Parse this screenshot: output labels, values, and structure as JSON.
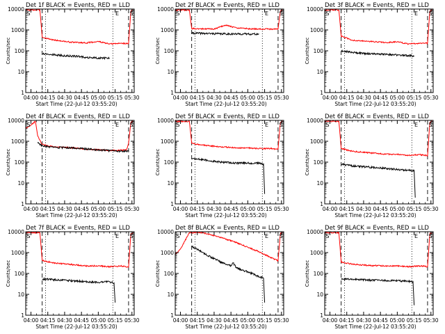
{
  "chart_data": [
    {
      "type": "line",
      "title": "Det 1f BLACK = Events, RED = LLD",
      "xlabel": "Start Time (22-Jul-12 03:55:20)",
      "ylabel": "Counts/sec",
      "x_ticks": [
        "04:00",
        "04:15",
        "04:30",
        "04:45",
        "05:00",
        "05:15",
        "05:30"
      ],
      "y_ticks": [
        "1",
        "10",
        "100",
        "1000",
        "10000"
      ],
      "yscale": "log",
      "ylim": [
        1,
        10000
      ],
      "markers": [
        {
          "text": "S",
          "x": "03:55"
        },
        {
          "text": "E",
          "x": "05:15"
        },
        {
          "text": "S",
          "x": "05:29"
        }
      ],
      "vlines": [
        {
          "x": "04:10",
          "style": "dashed"
        },
        {
          "x": "04:13",
          "style": "dotted"
        },
        {
          "x": "05:13",
          "style": "dotted"
        },
        {
          "x": "05:27",
          "style": "dashed"
        }
      ],
      "series": [
        {
          "color": "#ff0000",
          "x": [
            "03:55",
            "03:58",
            "04:08",
            "04:10",
            "04:20",
            "04:35",
            "04:50",
            "05:00",
            "05:10",
            "05:20",
            "05:27",
            "05:29",
            "05:31"
          ],
          "y": [
            9000,
            9000,
            9000,
            450,
            330,
            260,
            240,
            280,
            210,
            230,
            220,
            8000,
            9000
          ]
        },
        {
          "color": "#000000",
          "x": [
            "04:10",
            "04:20",
            "04:30",
            "04:40",
            "04:50",
            "05:00",
            "05:10"
          ],
          "y": [
            75,
            65,
            58,
            55,
            48,
            45,
            45
          ]
        }
      ]
    },
    {
      "type": "line",
      "title": "Det 2f BLACK = Events, RED = LLD",
      "xlabel": "Start Time (22-Jul-12 03:55:20)",
      "ylabel": "Counts/sec",
      "x_ticks": [
        "04:00",
        "04:15",
        "04:30",
        "04:45",
        "05:00",
        "05:15",
        "05:30"
      ],
      "y_ticks": [
        "1",
        "10",
        "100",
        "1000",
        "10000"
      ],
      "yscale": "log",
      "ylim": [
        1,
        10000
      ],
      "markers": [
        {
          "text": "S",
          "x": "03:55"
        },
        {
          "text": "E",
          "x": "05:15"
        },
        {
          "text": "S",
          "x": "05:29"
        }
      ],
      "vlines": [
        {
          "x": "04:10",
          "style": "dashed"
        },
        {
          "x": "04:13",
          "style": "dotted"
        },
        {
          "x": "05:13",
          "style": "dotted"
        },
        {
          "x": "05:27",
          "style": "dashed"
        }
      ],
      "series": [
        {
          "color": "#ff0000",
          "x": [
            "03:55",
            "04:03",
            "04:08",
            "04:10",
            "04:30",
            "04:40",
            "04:50",
            "05:00",
            "05:10",
            "05:25",
            "05:27",
            "05:29",
            "05:31"
          ],
          "y": [
            9000,
            9000,
            9000,
            1150,
            1100,
            1700,
            1250,
            1150,
            1100,
            1100,
            1100,
            8000,
            9000
          ]
        },
        {
          "color": "#000000",
          "x": [
            "04:10",
            "04:20",
            "04:35",
            "04:50",
            "05:00",
            "05:10"
          ],
          "y": [
            700,
            680,
            650,
            640,
            640,
            630
          ]
        }
      ]
    },
    {
      "type": "line",
      "title": "Det 3f BLACK = Events, RED = LLD",
      "xlabel": "Start Time (22-Jul-12 03:55:20)",
      "ylabel": "Counts/sec",
      "x_ticks": [
        "04:00",
        "04:15",
        "04:30",
        "04:45",
        "05:00",
        "05:15",
        "05:30"
      ],
      "y_ticks": [
        "1",
        "10",
        "100",
        "1000",
        "10000"
      ],
      "yscale": "log",
      "ylim": [
        1,
        10000
      ],
      "markers": [
        {
          "text": "S",
          "x": "03:55"
        },
        {
          "text": "E",
          "x": "05:15"
        },
        {
          "text": "S",
          "x": "05:29"
        }
      ],
      "vlines": [
        {
          "x": "04:10",
          "style": "dashed"
        },
        {
          "x": "04:13",
          "style": "dotted"
        },
        {
          "x": "05:13",
          "style": "dotted"
        },
        {
          "x": "05:27",
          "style": "dashed"
        }
      ],
      "series": [
        {
          "color": "#ff0000",
          "x": [
            "03:55",
            "03:58",
            "04:08",
            "04:10",
            "04:20",
            "04:35",
            "04:50",
            "05:00",
            "05:10",
            "05:20",
            "05:27",
            "05:29",
            "05:31"
          ],
          "y": [
            9000,
            9000,
            9000,
            500,
            320,
            280,
            250,
            270,
            210,
            230,
            230,
            8000,
            9000
          ]
        },
        {
          "color": "#000000",
          "x": [
            "04:10",
            "04:20",
            "04:30",
            "04:40",
            "04:50",
            "05:00",
            "05:15"
          ],
          "y": [
            100,
            85,
            75,
            70,
            68,
            62,
            58
          ]
        }
      ]
    },
    {
      "type": "line",
      "title": "Det 4f BLACK = Events, RED = LLD",
      "xlabel": "Start Time (22-Jul-12 03:55:20)",
      "ylabel": "Counts/sec",
      "x_ticks": [
        "04:00",
        "04:15",
        "04:30",
        "04:45",
        "05:00",
        "05:15",
        "05:30"
      ],
      "y_ticks": [
        "1",
        "10",
        "100",
        "1000",
        "10000"
      ],
      "yscale": "log",
      "ylim": [
        1,
        10000
      ],
      "markers": [
        {
          "text": "S",
          "x": "03:55"
        },
        {
          "text": "E",
          "x": "05:15"
        },
        {
          "text": "S",
          "x": "05:29"
        }
      ],
      "vlines": [
        {
          "x": "04:10",
          "style": "dashed"
        },
        {
          "x": "04:13",
          "style": "dotted"
        },
        {
          "x": "05:13",
          "style": "dotted"
        },
        {
          "x": "05:27",
          "style": "dashed"
        }
      ],
      "series": [
        {
          "color": "#ff0000",
          "x": [
            "03:55",
            "04:00",
            "04:04",
            "04:06",
            "04:10",
            "04:20",
            "04:35",
            "04:50",
            "05:10",
            "05:25",
            "05:27",
            "05:29",
            "05:31"
          ],
          "y": [
            4000,
            6000,
            9000,
            1800,
            700,
            550,
            500,
            420,
            360,
            380,
            800,
            8000,
            9000
          ]
        },
        {
          "color": "#000000",
          "x": [
            "04:06",
            "04:10",
            "04:20",
            "04:35",
            "04:50",
            "05:05",
            "05:20",
            "05:27"
          ],
          "y": [
            900,
            600,
            500,
            480,
            430,
            370,
            330,
            350
          ]
        }
      ]
    },
    {
      "type": "line",
      "title": "Det 5f BLACK = Events, RED = LLD",
      "xlabel": "Start Time (22-Jul-12 03:55:20)",
      "ylabel": "Counts/sec",
      "x_ticks": [
        "04:00",
        "04:15",
        "04:30",
        "04:45",
        "05:00",
        "05:15",
        "05:30"
      ],
      "y_ticks": [
        "1",
        "10",
        "100",
        "1000",
        "10000"
      ],
      "yscale": "log",
      "ylim": [
        1,
        10000
      ],
      "markers": [
        {
          "text": "S",
          "x": "03:55"
        },
        {
          "text": "E",
          "x": "05:15"
        },
        {
          "text": "S",
          "x": "05:29"
        }
      ],
      "vlines": [
        {
          "x": "04:10",
          "style": "dashed"
        },
        {
          "x": "04:13",
          "style": "dotted"
        },
        {
          "x": "05:13",
          "style": "dotted"
        },
        {
          "x": "05:27",
          "style": "dashed"
        }
      ],
      "series": [
        {
          "color": "#ff0000",
          "x": [
            "03:55",
            "03:58",
            "04:08",
            "04:10",
            "04:20",
            "04:35",
            "04:50",
            "05:00",
            "05:10",
            "05:20",
            "05:27",
            "05:29",
            "05:31"
          ],
          "y": [
            9000,
            9000,
            9000,
            800,
            650,
            550,
            480,
            480,
            440,
            450,
            420,
            8000,
            9000
          ]
        },
        {
          "color": "#000000",
          "x": [
            "04:10",
            "04:20",
            "04:35",
            "04:50",
            "05:00",
            "05:10",
            "05:14",
            "05:15"
          ],
          "y": [
            150,
            130,
            100,
            90,
            90,
            88,
            80,
            3
          ]
        }
      ]
    },
    {
      "type": "line",
      "title": "Det 6f BLACK = Events, RED = LLD",
      "xlabel": "Start Time (22-Jul-12 03:55:20)",
      "ylabel": "Counts/sec",
      "x_ticks": [
        "04:00",
        "04:15",
        "04:30",
        "04:45",
        "05:00",
        "05:15",
        "05:30"
      ],
      "y_ticks": [
        "1",
        "10",
        "100",
        "1000",
        "10000"
      ],
      "yscale": "log",
      "ylim": [
        1,
        10000
      ],
      "markers": [
        {
          "text": "S",
          "x": "03:55"
        },
        {
          "text": "E",
          "x": "05:15"
        },
        {
          "text": "S",
          "x": "05:29"
        }
      ],
      "vlines": [
        {
          "x": "04:10",
          "style": "dashed"
        },
        {
          "x": "04:13",
          "style": "dotted"
        },
        {
          "x": "05:13",
          "style": "dotted"
        },
        {
          "x": "05:27",
          "style": "dashed"
        }
      ],
      "series": [
        {
          "color": "#ff0000",
          "x": [
            "03:55",
            "03:58",
            "04:08",
            "04:10",
            "04:20",
            "04:35",
            "04:50",
            "05:00",
            "05:10",
            "05:20",
            "05:27",
            "05:29",
            "05:31"
          ],
          "y": [
            9000,
            9000,
            9000,
            450,
            330,
            280,
            240,
            240,
            210,
            230,
            200,
            8000,
            9000
          ]
        },
        {
          "color": "#000000",
          "x": [
            "04:10",
            "04:20",
            "04:35",
            "04:50",
            "05:00",
            "05:10",
            "05:15",
            "05:16"
          ],
          "y": [
            80,
            65,
            58,
            50,
            45,
            40,
            40,
            2
          ]
        }
      ]
    },
    {
      "type": "line",
      "title": "Det 7f BLACK = Events, RED = LLD",
      "xlabel": "Start Time (22-Jul-12 03:55:20)",
      "ylabel": "Counts/sec",
      "x_ticks": [
        "04:00",
        "04:15",
        "04:30",
        "04:45",
        "05:00",
        "05:15",
        "05:30"
      ],
      "y_ticks": [
        "1",
        "10",
        "100",
        "1000",
        "10000"
      ],
      "yscale": "log",
      "ylim": [
        1,
        10000
      ],
      "markers": [
        {
          "text": "S",
          "x": "03:55"
        },
        {
          "text": "E",
          "x": "05:15"
        },
        {
          "text": "S",
          "x": "05:29"
        }
      ],
      "vlines": [
        {
          "x": "04:10",
          "style": "dashed"
        },
        {
          "x": "04:13",
          "style": "dotted"
        },
        {
          "x": "05:13",
          "style": "dotted"
        },
        {
          "x": "05:27",
          "style": "dashed"
        }
      ],
      "series": [
        {
          "color": "#ff0000",
          "x": [
            "03:55",
            "03:58",
            "04:08",
            "04:10",
            "04:20",
            "04:35",
            "04:50",
            "05:00",
            "05:10",
            "05:20",
            "05:27",
            "05:29",
            "05:31"
          ],
          "y": [
            9000,
            9000,
            9000,
            420,
            320,
            270,
            230,
            230,
            210,
            230,
            200,
            8000,
            9000
          ]
        },
        {
          "color": "#000000",
          "x": [
            "04:10",
            "04:20",
            "04:35",
            "04:50",
            "05:00",
            "05:10",
            "05:14",
            "05:15"
          ],
          "y": [
            55,
            50,
            45,
            40,
            38,
            40,
            35,
            4
          ]
        }
      ]
    },
    {
      "type": "line",
      "title": "Det 8f BLACK = Events, RED = LLD",
      "xlabel": "Start Time (22-Jul-12 03:55:20)",
      "ylabel": "Counts/sec",
      "x_ticks": [
        "04:00",
        "04:15",
        "04:30",
        "04:45",
        "05:00",
        "05:15",
        "05:30"
      ],
      "y_ticks": [
        "1",
        "10",
        "100",
        "1000",
        "10000"
      ],
      "yscale": "log",
      "ylim": [
        1,
        10000
      ],
      "markers": [
        {
          "text": "S",
          "x": "03:55"
        },
        {
          "text": "E",
          "x": "05:15"
        },
        {
          "text": "S",
          "x": "05:29"
        }
      ],
      "vlines": [
        {
          "x": "04:10",
          "style": "dashed"
        },
        {
          "x": "04:13",
          "style": "dotted"
        },
        {
          "x": "05:13",
          "style": "dotted"
        },
        {
          "x": "05:27",
          "style": "dashed"
        }
      ],
      "series": [
        {
          "color": "#ff0000",
          "x": [
            "03:55",
            "04:00",
            "04:08",
            "04:10",
            "04:20",
            "04:35",
            "04:50",
            "05:00",
            "05:10",
            "05:20",
            "05:27",
            "05:29",
            "05:31"
          ],
          "y": [
            800,
            1500,
            9000,
            9000,
            9000,
            5500,
            3000,
            1800,
            1100,
            600,
            400,
            8000,
            9000
          ]
        },
        {
          "color": "#000000",
          "x": [
            "04:10",
            "04:20",
            "04:30",
            "04:40",
            "04:45",
            "04:47",
            "04:50",
            "05:00",
            "05:10",
            "05:14",
            "05:15"
          ],
          "y": [
            2000,
            1000,
            500,
            280,
            230,
            320,
            180,
            120,
            70,
            60,
            4
          ]
        }
      ]
    },
    {
      "type": "line",
      "title": "Det 9f BLACK = Events, RED = LLD",
      "xlabel": "Start Time (22-Jul-12 03:55:20)",
      "ylabel": "Counts/sec",
      "x_ticks": [
        "04:00",
        "04:15",
        "04:30",
        "04:45",
        "05:00",
        "05:15",
        "05:30"
      ],
      "y_ticks": [
        "1",
        "10",
        "100",
        "1000",
        "10000"
      ],
      "yscale": "log",
      "ylim": [
        1,
        10000
      ],
      "markers": [
        {
          "text": "S",
          "x": "03:55"
        },
        {
          "text": "E",
          "x": "05:15"
        },
        {
          "text": "S",
          "x": "05:29"
        }
      ],
      "vlines": [
        {
          "x": "04:10",
          "style": "dashed"
        },
        {
          "x": "04:13",
          "style": "dotted"
        },
        {
          "x": "05:13",
          "style": "dotted"
        },
        {
          "x": "05:27",
          "style": "dashed"
        }
      ],
      "series": [
        {
          "color": "#ff0000",
          "x": [
            "03:55",
            "03:58",
            "04:08",
            "04:10",
            "04:20",
            "04:35",
            "04:50",
            "05:00",
            "05:10",
            "05:20",
            "05:27",
            "05:29",
            "05:31"
          ],
          "y": [
            9000,
            9000,
            9000,
            350,
            280,
            240,
            230,
            230,
            210,
            230,
            210,
            8000,
            9000
          ]
        },
        {
          "color": "#000000",
          "x": [
            "04:10",
            "04:20",
            "04:35",
            "04:50",
            "05:00",
            "05:10",
            "05:14",
            "05:15"
          ],
          "y": [
            55,
            52,
            48,
            45,
            45,
            42,
            40,
            3
          ]
        }
      ]
    }
  ]
}
